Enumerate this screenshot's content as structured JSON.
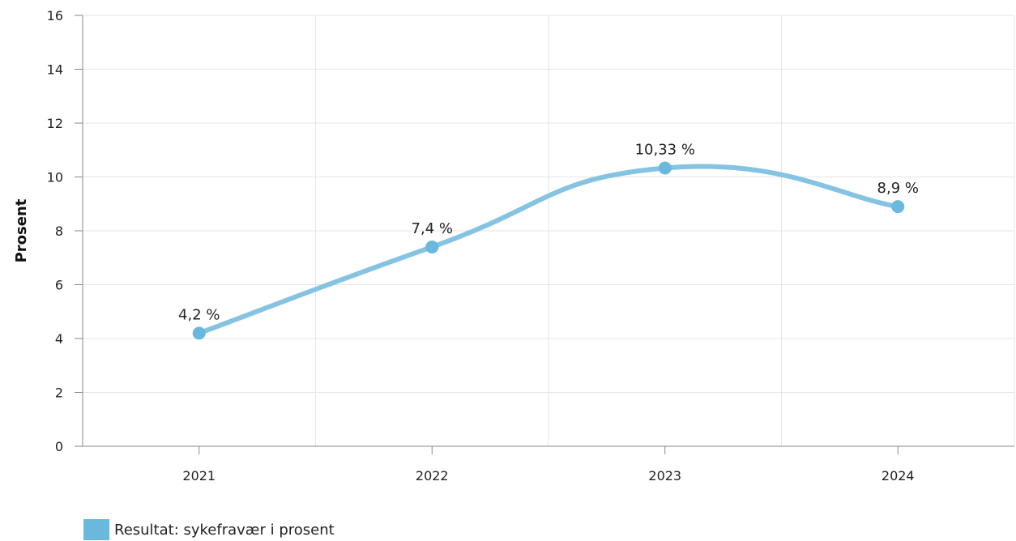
{
  "chart_data": {
    "type": "line",
    "categories": [
      "2021",
      "2022",
      "2023",
      "2024"
    ],
    "series": [
      {
        "name": "Resultat: sykefravær i prosent",
        "values": [
          4.2,
          7.4,
          10.33,
          8.9
        ],
        "labels": [
          "4,2 %",
          "7,4 %",
          "10,33 %",
          "8,9 %"
        ],
        "color": "#6BB8DE",
        "line_color": "#85C3E3"
      }
    ],
    "ylabel": "Prosent",
    "ylim": [
      0,
      16
    ],
    "yticks": [
      "0",
      "2",
      "4",
      "6",
      "8",
      "10",
      "12",
      "14",
      "16"
    ],
    "grid": true,
    "legend_position": "bottom-left"
  }
}
